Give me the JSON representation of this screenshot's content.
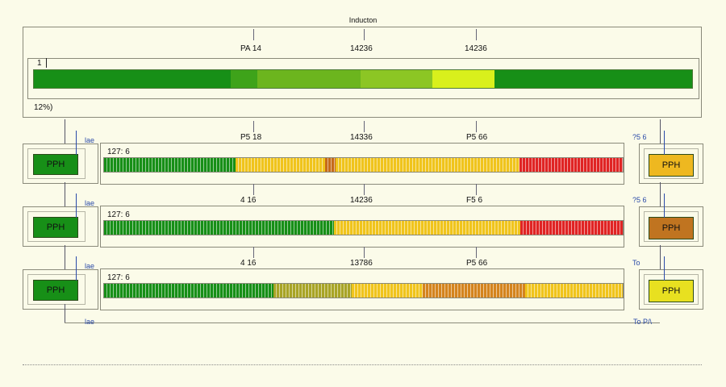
{
  "title": "Inducton",
  "top_panel": {
    "markers": [
      "PA 14",
      "14236",
      "14236"
    ],
    "index": "1",
    "percent": "12%)",
    "segments": [
      {
        "color": "#178f17",
        "weight": 245
      },
      {
        "color": "#3ea31a",
        "weight": 33
      },
      {
        "color": "#6cb51e",
        "weight": 128
      },
      {
        "color": "#8cc624",
        "weight": 89
      },
      {
        "color": "#d9f01c",
        "weight": 77
      },
      {
        "color": "#178f17",
        "weight": 246
      }
    ]
  },
  "rows": [
    {
      "markers": [
        "P5 18",
        "14336",
        "P5 66"
      ],
      "value": "127: 6",
      "left_label": "PPH",
      "left_color": "#178f17",
      "right_label": "PPH",
      "right_color": "#eeb820",
      "left_small": "lae",
      "right_small": "?5 6",
      "segments": [
        {
          "color": "#178f17",
          "weight": 163
        },
        {
          "color": "#f0c41c",
          "weight": 111
        },
        {
          "color": "#c56a18",
          "weight": 13
        },
        {
          "color": "#f0c41c",
          "weight": 229
        },
        {
          "color": "#e02424",
          "weight": 128
        }
      ]
    },
    {
      "markers": [
        "4 16",
        "14236",
        "F5 6"
      ],
      "value": "127: 6",
      "left_label": "PPH",
      "left_color": "#178f17",
      "right_label": "PPH",
      "right_color": "#c07420",
      "left_small": "lae",
      "right_small": "?5 6",
      "segments": [
        {
          "color": "#178f17",
          "weight": 285
        },
        {
          "color": "#f0c41c",
          "weight": 232
        },
        {
          "color": "#e02424",
          "weight": 127
        }
      ]
    },
    {
      "markers": [
        "4 16",
        "13786",
        "P5 66"
      ],
      "value": "127: 6",
      "left_label": "PPH",
      "left_color": "#178f17",
      "right_label": "PPH",
      "right_color": "#e8e020",
      "left_small": "lae",
      "right_small": "To",
      "segments": [
        {
          "color": "#178f17",
          "weight": 210
        },
        {
          "color": "#a8a426",
          "weight": 97
        },
        {
          "color": "#f0c41c",
          "weight": 89
        },
        {
          "color": "#d4841e",
          "weight": 127
        },
        {
          "color": "#f0c41c",
          "weight": 121
        }
      ]
    }
  ],
  "bottom": {
    "left_small": "lae",
    "right_small": "To P/\\"
  }
}
